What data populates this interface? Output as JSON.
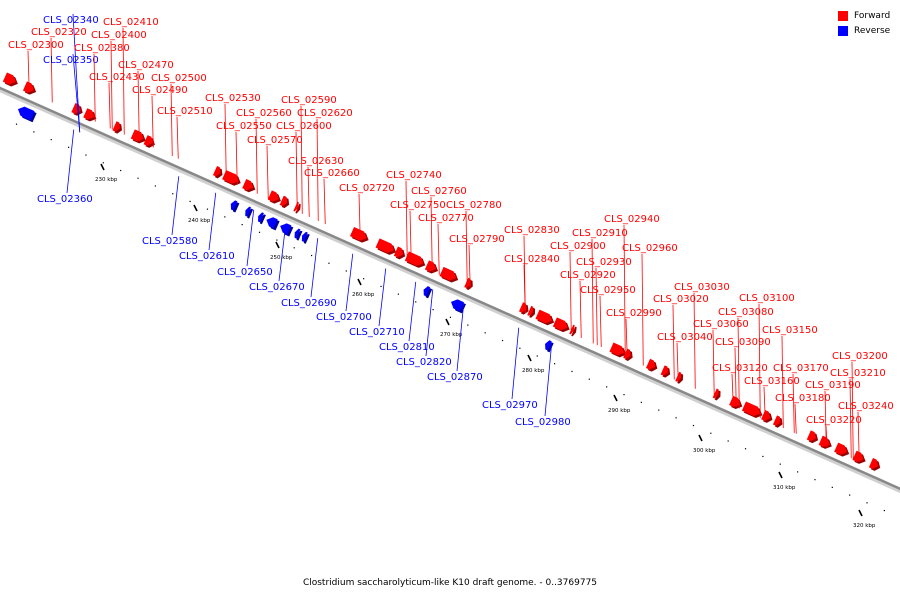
{
  "caption": "Clostridium saccharolyticum-like K10 draft genome. - 0..3769775",
  "legend": [
    {
      "label": "Forward",
      "color": "#ff0000"
    },
    {
      "label": "Reverse",
      "color": "#0000ff"
    }
  ],
  "colors": {
    "forward": "#ff0000",
    "reverse": "#0000ff",
    "backbone": "#888888"
  },
  "ticks": [
    {
      "label": "230 kbp",
      "pos": 230
    },
    {
      "label": "240 kbp",
      "pos": 240
    },
    {
      "label": "250 kbp",
      "pos": 250
    },
    {
      "label": "260 kbp",
      "pos": 260
    },
    {
      "label": "270 kbp",
      "pos": 270
    },
    {
      "label": "280 kbp",
      "pos": 280
    },
    {
      "label": "290 kbp",
      "pos": 290
    },
    {
      "label": "300 kbp",
      "pos": 300
    },
    {
      "label": "310 kbp",
      "pos": 310
    },
    {
      "label": "320 kbp",
      "pos": 320
    }
  ],
  "genes": [
    {
      "name": "CLS_02300",
      "strand": "forward"
    },
    {
      "name": "CLS_02320",
      "strand": "forward"
    },
    {
      "name": "CLS_02340",
      "strand": "reverse"
    },
    {
      "name": "CLS_02350",
      "strand": "reverse"
    },
    {
      "name": "CLS_02360",
      "strand": "reverse"
    },
    {
      "name": "CLS_02380",
      "strand": "forward"
    },
    {
      "name": "CLS_02400",
      "strand": "forward"
    },
    {
      "name": "CLS_02410",
      "strand": "forward"
    },
    {
      "name": "CLS_02430",
      "strand": "forward"
    },
    {
      "name": "CLS_02470",
      "strand": "forward"
    },
    {
      "name": "CLS_02490",
      "strand": "forward"
    },
    {
      "name": "CLS_02500",
      "strand": "forward"
    },
    {
      "name": "CLS_02510",
      "strand": "forward"
    },
    {
      "name": "CLS_02530",
      "strand": "forward"
    },
    {
      "name": "CLS_02550",
      "strand": "forward"
    },
    {
      "name": "CLS_02560",
      "strand": "forward"
    },
    {
      "name": "CLS_02570",
      "strand": "forward"
    },
    {
      "name": "CLS_02580",
      "strand": "reverse"
    },
    {
      "name": "CLS_02590",
      "strand": "forward"
    },
    {
      "name": "CLS_02600",
      "strand": "forward"
    },
    {
      "name": "CLS_02610",
      "strand": "reverse"
    },
    {
      "name": "CLS_02620",
      "strand": "forward"
    },
    {
      "name": "CLS_02630",
      "strand": "forward"
    },
    {
      "name": "CLS_02650",
      "strand": "reverse"
    },
    {
      "name": "CLS_02660",
      "strand": "forward"
    },
    {
      "name": "CLS_02670",
      "strand": "reverse"
    },
    {
      "name": "CLS_02690",
      "strand": "reverse"
    },
    {
      "name": "CLS_02700",
      "strand": "reverse"
    },
    {
      "name": "CLS_02710",
      "strand": "reverse"
    },
    {
      "name": "CLS_02720",
      "strand": "forward"
    },
    {
      "name": "CLS_02740",
      "strand": "forward"
    },
    {
      "name": "CLS_02750",
      "strand": "forward"
    },
    {
      "name": "CLS_02760",
      "strand": "forward"
    },
    {
      "name": "CLS_02770",
      "strand": "forward"
    },
    {
      "name": "CLS_02780",
      "strand": "forward"
    },
    {
      "name": "CLS_02790",
      "strand": "forward"
    },
    {
      "name": "CLS_02810",
      "strand": "reverse"
    },
    {
      "name": "CLS_02820",
      "strand": "reverse"
    },
    {
      "name": "CLS_02830",
      "strand": "forward"
    },
    {
      "name": "CLS_02840",
      "strand": "forward"
    },
    {
      "name": "CLS_02870",
      "strand": "reverse"
    },
    {
      "name": "CLS_02900",
      "strand": "forward"
    },
    {
      "name": "CLS_02910",
      "strand": "forward"
    },
    {
      "name": "CLS_02920",
      "strand": "forward"
    },
    {
      "name": "CLS_02930",
      "strand": "forward"
    },
    {
      "name": "CLS_02940",
      "strand": "forward"
    },
    {
      "name": "CLS_02950",
      "strand": "forward"
    },
    {
      "name": "CLS_02960",
      "strand": "forward"
    },
    {
      "name": "CLS_02970",
      "strand": "reverse"
    },
    {
      "name": "CLS_02980",
      "strand": "reverse"
    },
    {
      "name": "CLS_02990",
      "strand": "forward"
    },
    {
      "name": "CLS_03020",
      "strand": "forward"
    },
    {
      "name": "CLS_03030",
      "strand": "forward"
    },
    {
      "name": "CLS_03040",
      "strand": "forward"
    },
    {
      "name": "CLS_03060",
      "strand": "forward"
    },
    {
      "name": "CLS_03080",
      "strand": "forward"
    },
    {
      "name": "CLS_03090",
      "strand": "forward"
    },
    {
      "name": "CLS_03100",
      "strand": "forward"
    },
    {
      "name": "CLS_03120",
      "strand": "forward"
    },
    {
      "name": "CLS_03150",
      "strand": "forward"
    },
    {
      "name": "CLS_03160",
      "strand": "forward"
    },
    {
      "name": "CLS_03170",
      "strand": "forward"
    },
    {
      "name": "CLS_03180",
      "strand": "forward"
    },
    {
      "name": "CLS_03190",
      "strand": "forward"
    },
    {
      "name": "CLS_03200",
      "strand": "forward"
    },
    {
      "name": "CLS_03210",
      "strand": "forward"
    },
    {
      "name": "CLS_03220",
      "strand": "forward"
    },
    {
      "name": "CLS_03240",
      "strand": "forward"
    }
  ]
}
